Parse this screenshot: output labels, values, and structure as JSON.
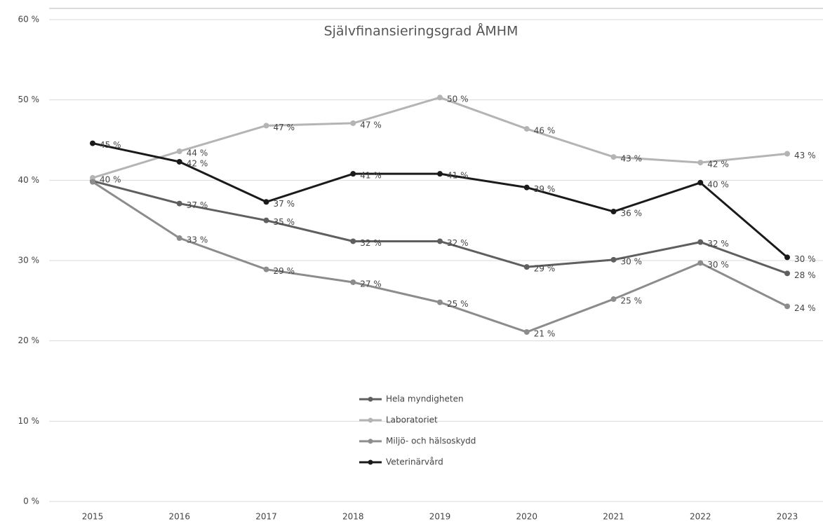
{
  "chart_data": {
    "type": "line",
    "title": "Självfinansieringsgrad ÅMHM",
    "categories": [
      "2015",
      "2016",
      "2017",
      "2018",
      "2019",
      "2020",
      "2021",
      "2022",
      "2023"
    ],
    "series": [
      {
        "name": "Hela myndigheten",
        "color": "#5f5f5f",
        "values": [
          39.9,
          37.1,
          35.0,
          32.4,
          32.4,
          29.2,
          30.1,
          32.3,
          28.4
        ],
        "value_labels": [
          null,
          "37 %",
          "35 %",
          "32 %",
          "32 %",
          "29 %",
          "30 %",
          "32 %",
          "28 %"
        ]
      },
      {
        "name": "Laboratoriet",
        "color": "#b4b4b4",
        "values": [
          40.3,
          43.6,
          46.8,
          47.1,
          50.3,
          46.4,
          42.9,
          42.2,
          43.3
        ],
        "value_labels": [
          "40 %",
          "44 %",
          "47 %",
          "47 %",
          "50 %",
          "46 %",
          "43 %",
          "42 %",
          "43 %"
        ]
      },
      {
        "name": "Miljö- och hälsoskydd",
        "color": "#8c8c8c",
        "values": [
          39.8,
          32.8,
          28.9,
          27.3,
          24.8,
          21.1,
          25.2,
          29.7,
          24.3
        ],
        "value_labels": [
          null,
          "33 %",
          "29 %",
          "27 %",
          "25 %",
          "21 %",
          "25 %",
          "30 %",
          "24 %"
        ]
      },
      {
        "name": "Veterinärvård",
        "color": "#1a1a1a",
        "values": [
          44.6,
          42.3,
          37.3,
          40.8,
          40.8,
          39.1,
          36.1,
          39.7,
          30.4
        ],
        "value_labels": [
          "45 %",
          "42 %",
          "37 %",
          "41 %",
          "41 %",
          "39 %",
          "36 %",
          "40 %",
          "30 %"
        ]
      }
    ],
    "ylim": [
      0,
      60
    ],
    "yticks": [
      {
        "value": 0,
        "label": "0 %"
      },
      {
        "value": 10,
        "label": "10 %"
      },
      {
        "value": 20,
        "label": "20 %"
      },
      {
        "value": 30,
        "label": "30 %"
      },
      {
        "value": 40,
        "label": "40 %"
      },
      {
        "value": 50,
        "label": "50 %"
      },
      {
        "value": 60,
        "label": "60 %"
      }
    ],
    "grid": true,
    "legend": "bottom"
  }
}
